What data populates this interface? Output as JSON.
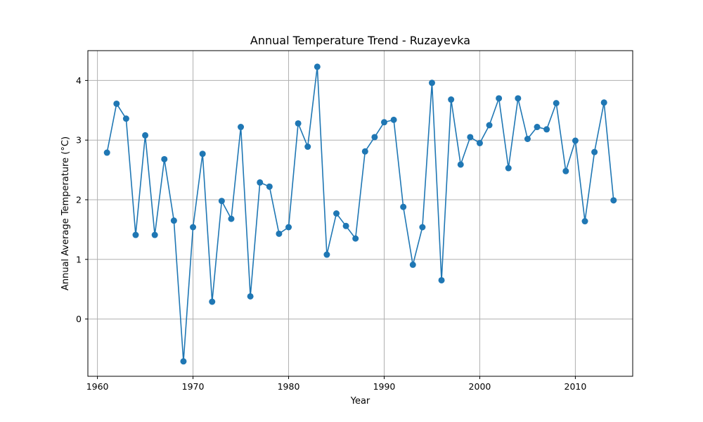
{
  "chart_data": {
    "type": "line",
    "title": "Annual Temperature Trend - Ruzayevka",
    "xlabel": "Year",
    "ylabel": "Annual Average Temperature (°C)",
    "xlim": [
      1959,
      2016
    ],
    "ylim": [
      -0.96,
      4.5
    ],
    "xticks": [
      1960,
      1970,
      1980,
      1990,
      2000,
      2010
    ],
    "yticks": [
      0,
      1,
      2,
      3,
      4
    ],
    "grid": true,
    "color": "#1f77b4",
    "marker": "circle",
    "x": [
      1961,
      1962,
      1963,
      1964,
      1965,
      1966,
      1967,
      1968,
      1969,
      1970,
      1971,
      1972,
      1973,
      1974,
      1975,
      1976,
      1977,
      1978,
      1979,
      1980,
      1981,
      1982,
      1983,
      1984,
      1985,
      1986,
      1987,
      1988,
      1989,
      1990,
      1991,
      1992,
      1993,
      1994,
      1995,
      1996,
      1997,
      1998,
      1999,
      2000,
      2001,
      2002,
      2003,
      2004,
      2005,
      2006,
      2007,
      2008,
      2009,
      2010,
      2011,
      2012,
      2013,
      2014
    ],
    "y": [
      2.79,
      3.61,
      3.36,
      1.41,
      3.08,
      1.41,
      2.68,
      1.65,
      -0.71,
      1.54,
      2.77,
      0.29,
      1.98,
      1.68,
      3.22,
      0.38,
      2.29,
      2.22,
      1.43,
      1.54,
      3.28,
      2.89,
      4.23,
      1.08,
      1.77,
      1.56,
      1.35,
      2.81,
      3.05,
      3.3,
      3.34,
      1.88,
      0.91,
      1.54,
      3.96,
      0.65,
      3.68,
      2.59,
      3.05,
      2.95,
      3.25,
      3.7,
      2.53,
      3.7,
      3.02,
      3.22,
      3.18,
      3.62,
      2.48,
      2.99,
      1.64,
      2.8,
      3.63,
      1.99
    ]
  }
}
